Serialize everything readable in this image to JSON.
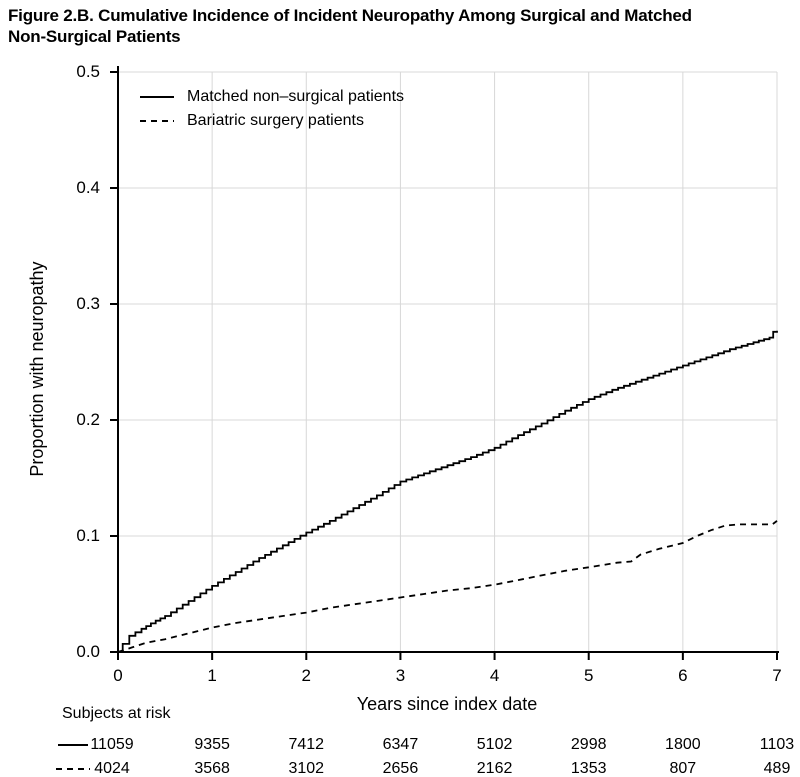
{
  "figure": {
    "title_line1": "Figure 2.B. Cumulative Incidence of Incident Neuropathy Among Surgical and Matched",
    "title_line2": "Non-Surgical Patients"
  },
  "chart_data": {
    "type": "line",
    "title": "Cumulative Incidence of Incident Neuropathy Among Surgical and Matched Non-Surgical Patients",
    "xlabel": "Years since index date",
    "ylabel": "Proportion with neuropathy",
    "xlim": [
      0,
      7
    ],
    "ylim": [
      0.0,
      0.5
    ],
    "grid": true,
    "legend_position": "top-left-inside",
    "x_tick_labels": [
      "0",
      "1",
      "2",
      "3",
      "4",
      "5",
      "6",
      "7"
    ],
    "y_tick_labels": [
      "0.0",
      "0.1",
      "0.2",
      "0.3",
      "0.4",
      "0.5"
    ],
    "colors": {
      "curve": "#000000",
      "grid": "#d8d8d8",
      "background": "#ffffff",
      "text": "#000000"
    },
    "series": [
      {
        "name": "Matched non–surgical patients",
        "line_style": "solid",
        "color": "#000000",
        "points": [
          [
            0,
            0
          ],
          [
            0.05,
            0.007
          ],
          [
            0.12,
            0.014
          ],
          [
            0.25,
            0.02
          ],
          [
            0.4,
            0.027
          ],
          [
            0.5,
            0.031
          ],
          [
            0.75,
            0.044
          ],
          [
            1,
            0.057
          ],
          [
            1.25,
            0.069
          ],
          [
            1.5,
            0.081
          ],
          [
            1.75,
            0.092
          ],
          [
            2,
            0.103
          ],
          [
            2.25,
            0.113
          ],
          [
            2.5,
            0.124
          ],
          [
            2.75,
            0.135
          ],
          [
            3,
            0.147
          ],
          [
            3.25,
            0.154
          ],
          [
            3.5,
            0.161
          ],
          [
            3.75,
            0.168
          ],
          [
            4,
            0.176
          ],
          [
            4.25,
            0.187
          ],
          [
            4.5,
            0.197
          ],
          [
            4.75,
            0.208
          ],
          [
            5,
            0.218
          ],
          [
            5.25,
            0.226
          ],
          [
            5.5,
            0.233
          ],
          [
            5.75,
            0.24
          ],
          [
            6,
            0.247
          ],
          [
            6.25,
            0.254
          ],
          [
            6.5,
            0.261
          ],
          [
            6.75,
            0.267
          ],
          [
            6.92,
            0.271
          ],
          [
            6.96,
            0.276
          ],
          [
            7,
            0.277
          ]
        ]
      },
      {
        "name": "Bariatric surgery patients",
        "line_style": "dashed",
        "color": "#000000",
        "points": [
          [
            0,
            0
          ],
          [
            0.15,
            0.004
          ],
          [
            0.3,
            0.008
          ],
          [
            0.5,
            0.011
          ],
          [
            0.75,
            0.016
          ],
          [
            1,
            0.021
          ],
          [
            1.25,
            0.025
          ],
          [
            1.5,
            0.028
          ],
          [
            1.75,
            0.031
          ],
          [
            2,
            0.034
          ],
          [
            2.25,
            0.038
          ],
          [
            2.5,
            0.041
          ],
          [
            2.75,
            0.044
          ],
          [
            3,
            0.047
          ],
          [
            3.25,
            0.05
          ],
          [
            3.5,
            0.053
          ],
          [
            3.75,
            0.055
          ],
          [
            4,
            0.058
          ],
          [
            4.25,
            0.062
          ],
          [
            4.5,
            0.066
          ],
          [
            4.75,
            0.07
          ],
          [
            5,
            0.073
          ],
          [
            5.3,
            0.077
          ],
          [
            5.45,
            0.078
          ],
          [
            5.55,
            0.084
          ],
          [
            5.75,
            0.089
          ],
          [
            6,
            0.094
          ],
          [
            6.15,
            0.1
          ],
          [
            6.3,
            0.105
          ],
          [
            6.45,
            0.109
          ],
          [
            6.6,
            0.11
          ],
          [
            6.95,
            0.11
          ],
          [
            7,
            0.113
          ]
        ]
      }
    ],
    "subjects_at_risk": {
      "label": "Subjects at risk",
      "times": [
        0,
        1,
        2,
        3,
        4,
        5,
        6,
        7
      ],
      "rows": [
        {
          "series": "Matched non–surgical patients",
          "marker": "solid",
          "values": [
            11059,
            9355,
            7412,
            6347,
            5102,
            2998,
            1800,
            1103
          ]
        },
        {
          "series": "Bariatric surgery patients",
          "marker": "dashed",
          "values": [
            4024,
            3568,
            3102,
            2656,
            2162,
            1353,
            807,
            489
          ]
        }
      ]
    }
  }
}
